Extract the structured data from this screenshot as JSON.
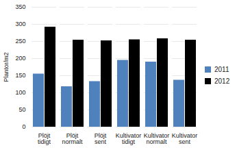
{
  "chart_data": {
    "type": "bar",
    "categories": [
      "Plöjt tidigt",
      "Plöjt normalt",
      "Plöjt sent",
      "Kultivator tidigt",
      "Kultivator normalt",
      "Kultivator sent"
    ],
    "series": [
      {
        "name": "2011",
        "color": "#4f81bd",
        "values": [
          155,
          118,
          133,
          195,
          190,
          137
        ]
      },
      {
        "name": "2012",
        "color": "#000000",
        "values": [
          292,
          254,
          252,
          255,
          258,
          254
        ]
      }
    ],
    "y_label": "Plantor/m2",
    "ylim": [
      0,
      350
    ],
    "yticks": [
      0,
      50,
      100,
      150,
      200,
      250,
      300,
      350
    ],
    "grid": true,
    "legend": "right"
  }
}
